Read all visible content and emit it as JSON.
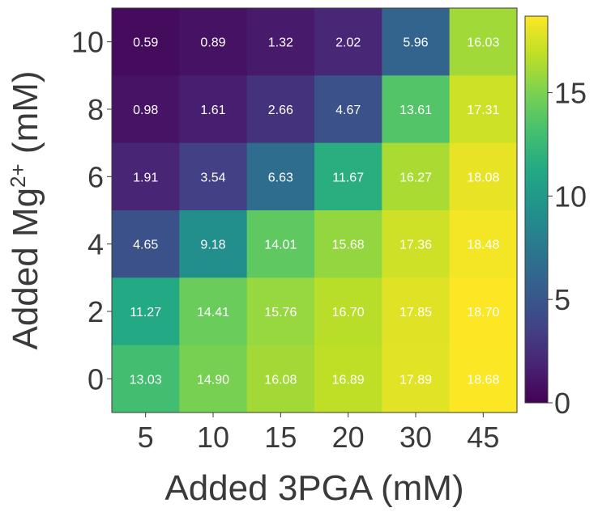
{
  "chart_data": {
    "type": "heatmap",
    "title": "",
    "xlabel": "Added 3PGA (mM)",
    "ylabel": {
      "prefix": "Added Mg",
      "superscript": "2+",
      "suffix": " (mM)"
    },
    "x_categories": [
      "5",
      "10",
      "15",
      "20",
      "30",
      "45"
    ],
    "y_categories_top_to_bottom": [
      "10",
      "8",
      "6",
      "4",
      "2",
      "0"
    ],
    "values": [
      [
        0.59,
        0.89,
        1.32,
        2.02,
        5.96,
        16.03
      ],
      [
        0.98,
        1.61,
        2.66,
        4.67,
        13.61,
        17.31
      ],
      [
        1.91,
        3.54,
        6.63,
        11.67,
        16.27,
        18.08
      ],
      [
        4.65,
        9.18,
        14.01,
        15.68,
        17.36,
        18.48
      ],
      [
        11.27,
        14.41,
        15.76,
        16.7,
        17.85,
        18.7
      ],
      [
        13.03,
        14.9,
        16.08,
        16.89,
        17.89,
        18.68
      ]
    ],
    "value_labels": [
      [
        "0.59",
        "0.89",
        "1.32",
        "2.02",
        "5.96",
        "16.03"
      ],
      [
        "0.98",
        "1.61",
        "2.66",
        "4.67",
        "13.61",
        "17.31"
      ],
      [
        "1.91",
        "3.54",
        "6.63",
        "11.67",
        "16.27",
        "18.08"
      ],
      [
        "4.65",
        "9.18",
        "14.01",
        "15.68",
        "17.36",
        "18.48"
      ],
      [
        "11.27",
        "14.41",
        "15.76",
        "16.70",
        "17.85",
        "18.70"
      ],
      [
        "13.03",
        "14.90",
        "16.08",
        "16.89",
        "17.89",
        "18.68"
      ]
    ],
    "colorbar": {
      "colormap": "viridis",
      "range": [
        0,
        18.7
      ],
      "ticks": [
        "0",
        "5",
        "10",
        "15"
      ]
    },
    "grid": false,
    "legend": "colorbar-right"
  }
}
